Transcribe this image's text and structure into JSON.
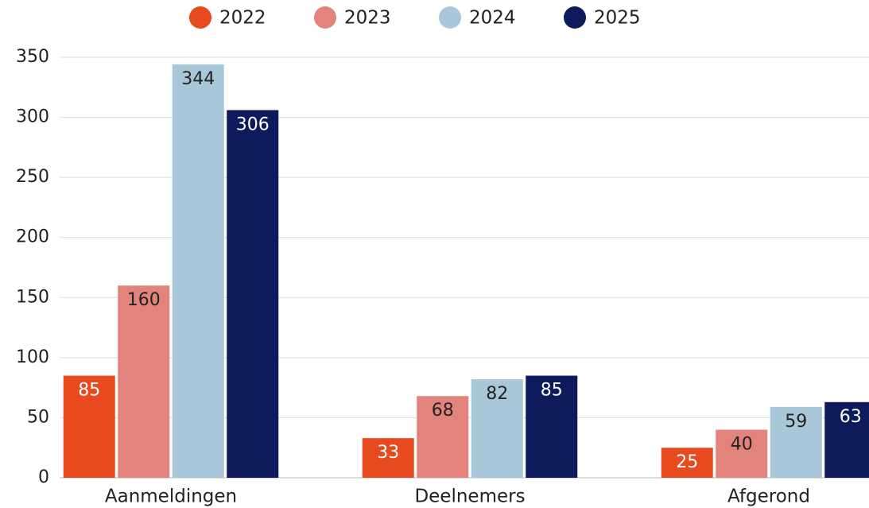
{
  "chart_data": {
    "type": "bar",
    "categories": [
      "Aanmeldingen",
      "Deelnemers",
      "Afgerond"
    ],
    "series": [
      {
        "name": "2022",
        "color": "#e84a1f",
        "values": [
          85,
          33,
          25
        ]
      },
      {
        "name": "2023",
        "color": "#e2837c",
        "values": [
          160,
          68,
          40
        ]
      },
      {
        "name": "2024",
        "color": "#a8c8da",
        "values": [
          344,
          82,
          59
        ]
      },
      {
        "name": "2025",
        "color": "#0d1a5c",
        "values": [
          306,
          85,
          63
        ]
      }
    ],
    "ylim": [
      0,
      350
    ],
    "yticks": [
      0,
      50,
      100,
      150,
      200,
      250,
      300,
      350
    ],
    "grid": true,
    "legend": "top"
  }
}
